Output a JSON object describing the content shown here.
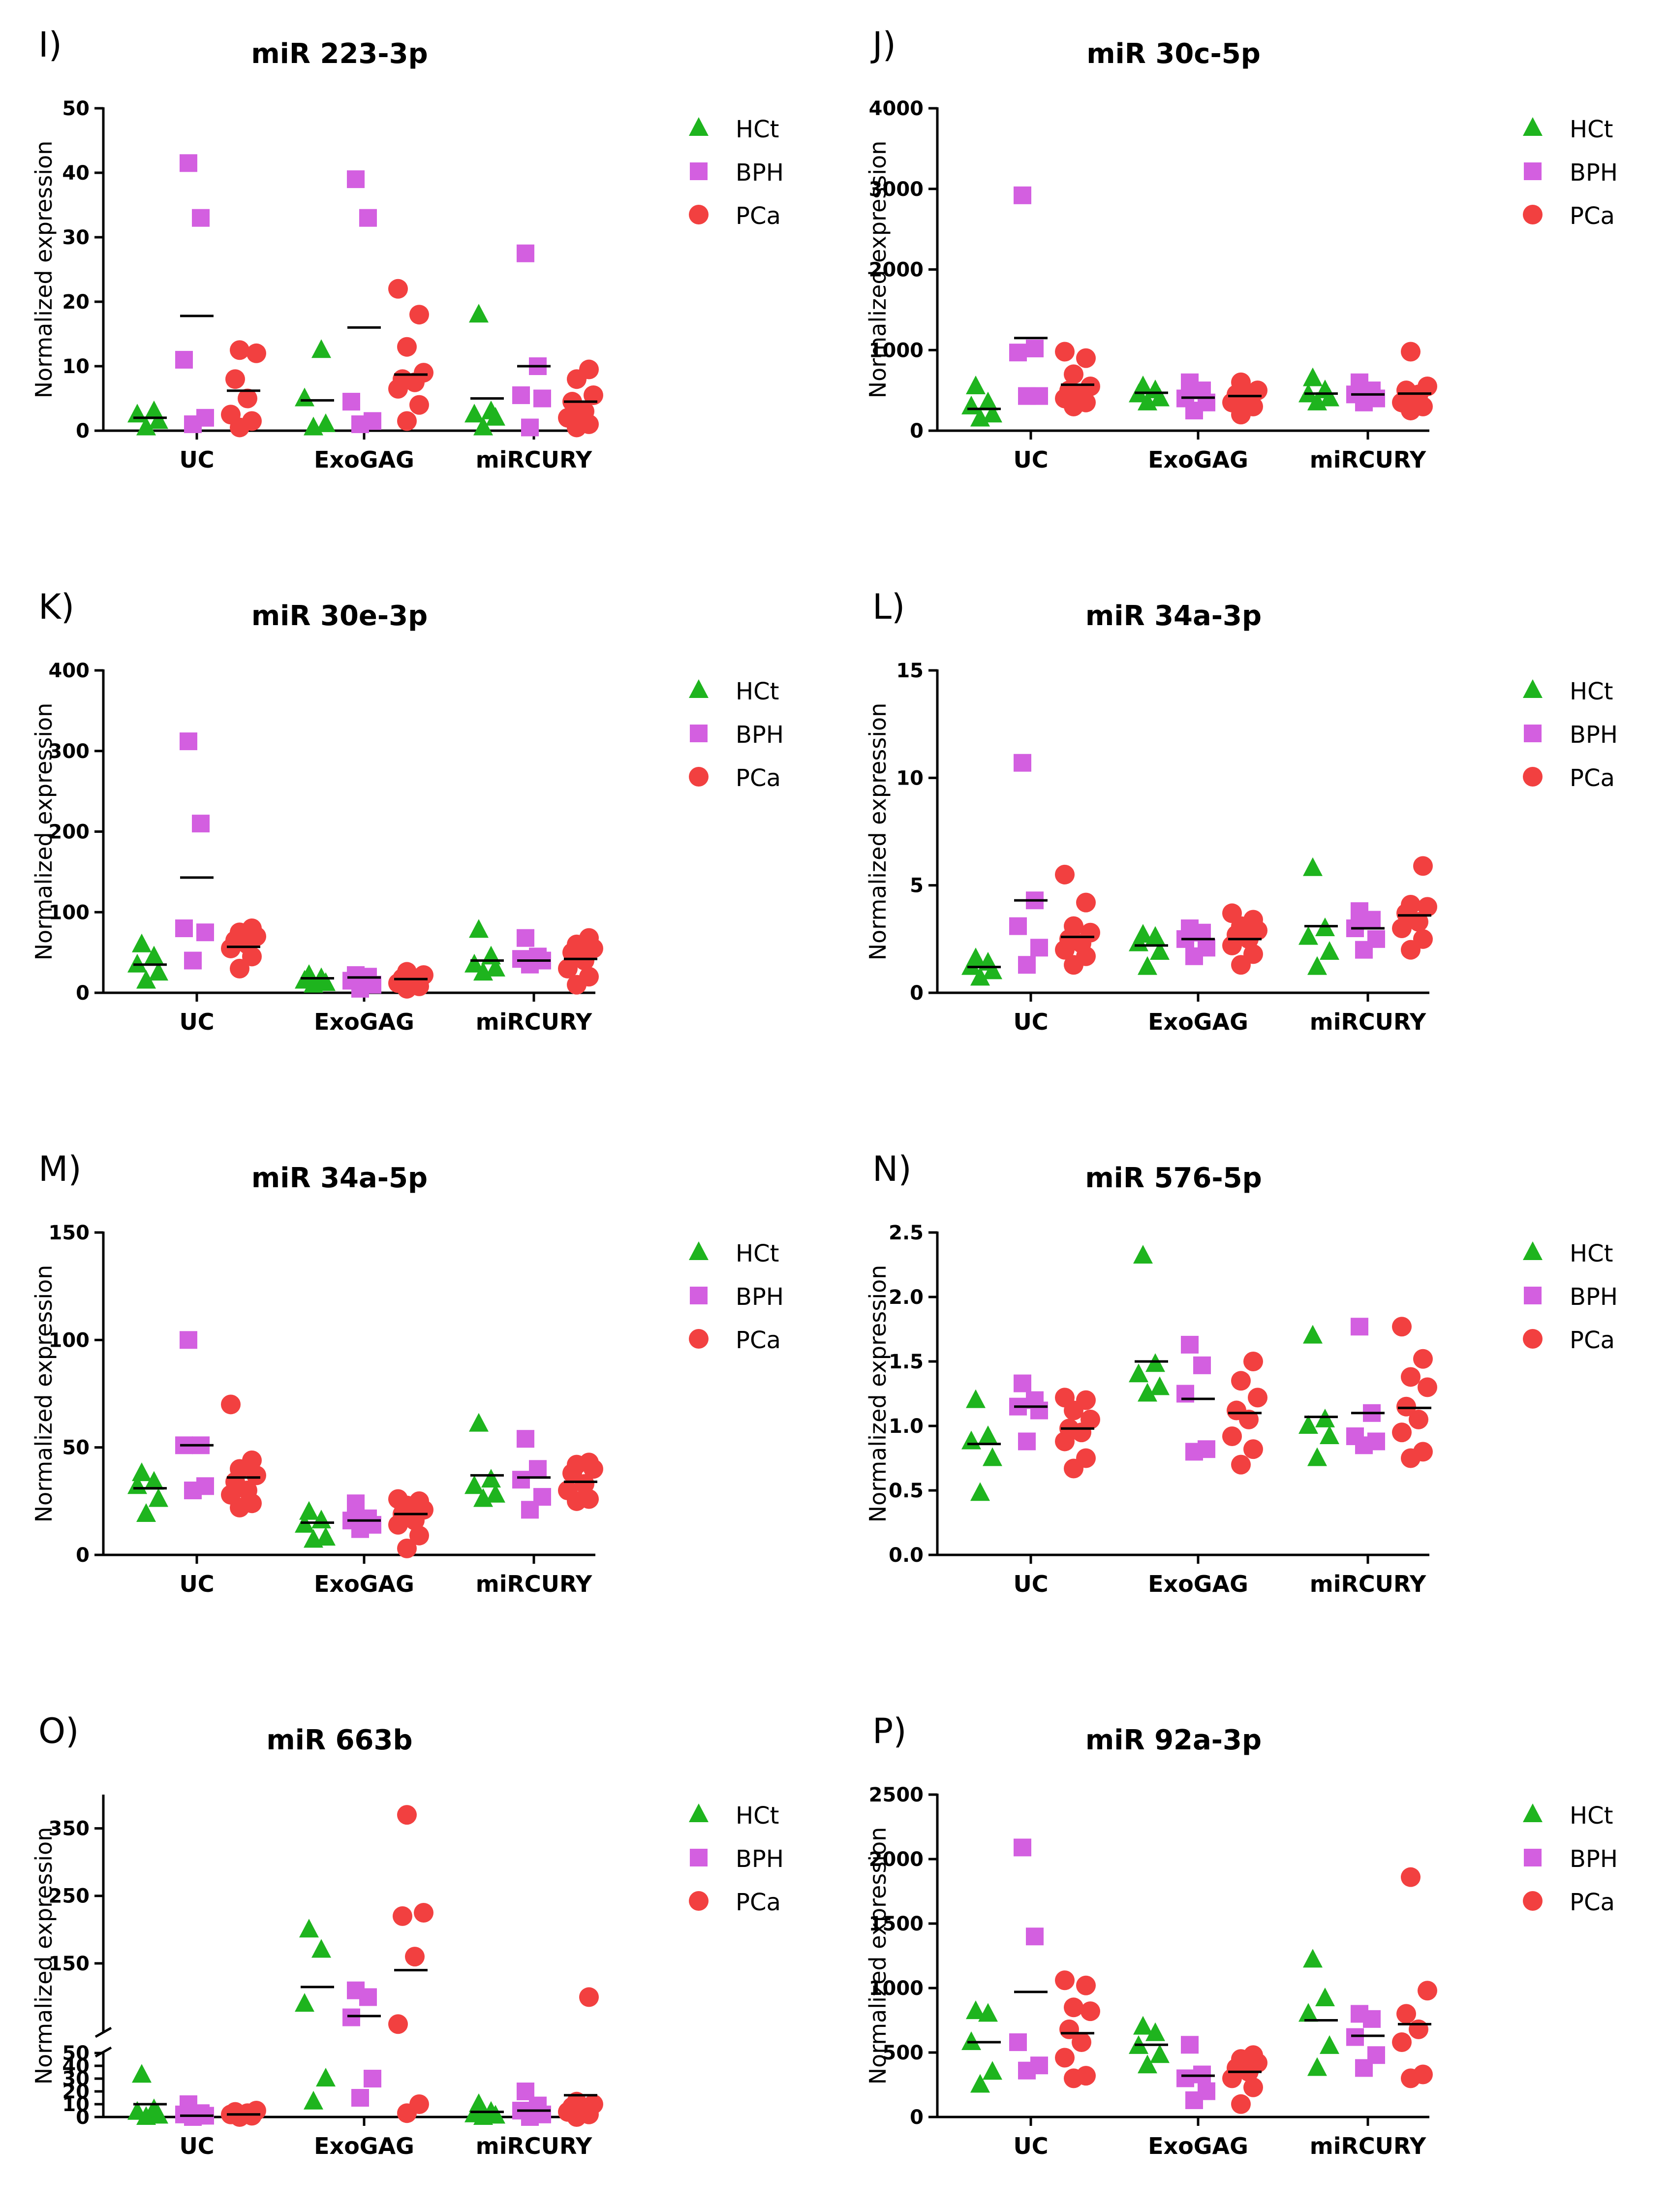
{
  "figure": {
    "categories": [
      "UC",
      "ExoGAG",
      "miRCURY"
    ],
    "y_axis_title": "Normalized expression",
    "groups": [
      {
        "name": "HCt",
        "color": "#1EB41E",
        "marker": "triangle"
      },
      {
        "name": "BPH",
        "color": "#D35FE0",
        "marker": "square"
      },
      {
        "name": "PCa",
        "color": "#F24040",
        "marker": "circle"
      }
    ]
  },
  "chart_data": [
    {
      "type": "scatter",
      "letter": "I)",
      "title": "miR 223-3p",
      "ylim": [
        0,
        50
      ],
      "ticks": [
        0,
        10,
        20,
        30,
        40,
        50
      ],
      "values": {
        "UC": {
          "HCt": [
            0.5,
            1.5,
            2.5,
            3
          ],
          "BPH": [
            1,
            2,
            11,
            33,
            41.5
          ],
          "PCa": [
            0.5,
            1.5,
            2.5,
            5,
            8,
            12,
            12.5
          ]
        },
        "ExoGAG": {
          "HCt": [
            0.5,
            1,
            5,
            12.5
          ],
          "BPH": [
            1,
            1.5,
            4.5,
            33,
            39
          ],
          "PCa": [
            1.5,
            4,
            6.5,
            7.5,
            8,
            9,
            13,
            18,
            22
          ]
        },
        "miRCURY": {
          "HCt": [
            0.5,
            2,
            2.5,
            3,
            18
          ],
          "BPH": [
            0.5,
            5,
            5.5,
            10,
            27.5
          ],
          "PCa": [
            0.5,
            1,
            2,
            3,
            4.5,
            5.5,
            8,
            9.5
          ]
        }
      },
      "medians": {
        "UC": {
          "HCt": 2,
          "BPH": 17.8,
          "PCa": 6.2
        },
        "ExoGAG": {
          "HCt": 4.7,
          "BPH": 16,
          "PCa": 8.7
        },
        "miRCURY": {
          "HCt": 5,
          "BPH": 10,
          "PCa": 4.5
        }
      }
    },
    {
      "type": "scatter",
      "letter": "J)",
      "title": "miR 30c-5p",
      "ylim": [
        0,
        4000
      ],
      "ticks": [
        0,
        1000,
        2000,
        3000,
        4000
      ],
      "values": {
        "UC": {
          "HCt": [
            150,
            200,
            300,
            350,
            550
          ],
          "BPH": [
            430,
            430,
            970,
            1020,
            2920
          ],
          "PCa": [
            300,
            350,
            400,
            450,
            500,
            550,
            700,
            900,
            980
          ]
        },
        "ExoGAG": {
          "HCt": [
            350,
            400,
            450,
            500,
            550
          ],
          "BPH": [
            250,
            350,
            400,
            500,
            600
          ],
          "PCa": [
            200,
            300,
            350,
            400,
            450,
            500,
            600
          ]
        },
        "miRCURY": {
          "HCt": [
            350,
            400,
            450,
            500,
            650
          ],
          "BPH": [
            350,
            400,
            450,
            500,
            600
          ],
          "PCa": [
            250,
            300,
            350,
            450,
            500,
            550,
            980
          ]
        }
      },
      "medians": {
        "UC": {
          "HCt": 270,
          "BPH": 1150,
          "PCa": 570
        },
        "ExoGAG": {
          "HCt": 470,
          "BPH": 410,
          "PCa": 430
        },
        "miRCURY": {
          "HCt": 460,
          "BPH": 450,
          "PCa": 460
        }
      }
    },
    {
      "type": "scatter",
      "letter": "K)",
      "title": "miR 30e-3p",
      "ylim": [
        0,
        400
      ],
      "ticks": [
        0,
        100,
        200,
        300,
        400
      ],
      "values": {
        "UC": {
          "HCt": [
            15,
            25,
            35,
            45,
            60
          ],
          "BPH": [
            40,
            75,
            80,
            210,
            312
          ],
          "PCa": [
            30,
            45,
            55,
            60,
            65,
            70,
            75,
            80
          ]
        },
        "ExoGAG": {
          "HCt": [
            10,
            12,
            15,
            18,
            22
          ],
          "BPH": [
            5,
            10,
            15,
            20,
            22
          ],
          "PCa": [
            5,
            8,
            12,
            15,
            18,
            22,
            26
          ]
        },
        "miRCURY": {
          "HCt": [
            25,
            30,
            35,
            45,
            78
          ],
          "BPH": [
            35,
            40,
            42,
            45,
            68
          ],
          "PCa": [
            10,
            20,
            30,
            40,
            50,
            55,
            60,
            68
          ]
        }
      },
      "medians": {
        "UC": {
          "HCt": 35,
          "BPH": 143,
          "PCa": 57
        },
        "ExoGAG": {
          "HCt": 18,
          "BPH": 19,
          "PCa": 17
        },
        "miRCURY": {
          "HCt": 40,
          "BPH": 40,
          "PCa": 42
        }
      }
    },
    {
      "type": "scatter",
      "letter": "L)",
      "title": "miR 34a-3p",
      "ylim": [
        0,
        15
      ],
      "ticks": [
        0,
        5,
        10,
        15
      ],
      "values": {
        "UC": {
          "HCt": [
            0.7,
            1.0,
            1.2,
            1.4,
            1.6
          ],
          "BPH": [
            1.3,
            2.1,
            3.1,
            4.3,
            10.7
          ],
          "PCa": [
            1.3,
            1.7,
            2.0,
            2.3,
            2.5,
            2.8,
            3.1,
            4.2,
            5.5
          ]
        },
        "ExoGAG": {
          "HCt": [
            1.2,
            1.9,
            2.3,
            2.6,
            2.7
          ],
          "BPH": [
            1.7,
            2.1,
            2.5,
            2.8,
            3.0
          ],
          "PCa": [
            1.3,
            1.8,
            2.2,
            2.5,
            2.7,
            2.9,
            3.1,
            3.4,
            3.7
          ]
        },
        "miRCURY": {
          "HCt": [
            1.2,
            1.9,
            2.6,
            3.0,
            5.8
          ],
          "BPH": [
            2.0,
            2.5,
            3.0,
            3.4,
            3.8
          ],
          "PCa": [
            2.0,
            2.5,
            3.0,
            3.3,
            3.7,
            4.0,
            4.1,
            5.9
          ]
        }
      },
      "medians": {
        "UC": {
          "HCt": 1.2,
          "BPH": 4.3,
          "PCa": 2.6
        },
        "ExoGAG": {
          "HCt": 2.2,
          "BPH": 2.5,
          "PCa": 2.5
        },
        "miRCURY": {
          "HCt": 3.1,
          "BPH": 3.0,
          "PCa": 3.6
        }
      }
    },
    {
      "type": "scatter",
      "letter": "M)",
      "title": "miR 34a-5p",
      "ylim": [
        0,
        150
      ],
      "ticks": [
        0,
        50,
        100,
        150
      ],
      "values": {
        "UC": {
          "HCt": [
            19,
            26,
            32,
            34,
            38
          ],
          "BPH": [
            30,
            32,
            51,
            51,
            100
          ],
          "PCa": [
            22,
            24,
            28,
            30,
            34,
            37,
            40,
            44,
            70
          ]
        },
        "ExoGAG": {
          "HCt": [
            7,
            8,
            14,
            16,
            20
          ],
          "BPH": [
            12,
            14,
            16,
            17,
            24
          ],
          "PCa": [
            3,
            9,
            14,
            16,
            19,
            21,
            23,
            25,
            26
          ]
        },
        "miRCURY": {
          "HCt": [
            26,
            28,
            32,
            35,
            61
          ],
          "BPH": [
            21,
            27,
            35,
            40,
            54
          ],
          "PCa": [
            25,
            26,
            30,
            33,
            38,
            40,
            42,
            43
          ]
        }
      },
      "medians": {
        "UC": {
          "HCt": 31,
          "BPH": 51,
          "PCa": 36
        },
        "ExoGAG": {
          "HCt": 15,
          "BPH": 16,
          "PCa": 19
        },
        "miRCURY": {
          "HCt": 37,
          "BPH": 36,
          "PCa": 34
        }
      }
    },
    {
      "type": "scatter",
      "letter": "N)",
      "title": "miR 576-5p",
      "ylim": [
        0,
        2.5
      ],
      "ticks": [
        "0.0",
        "0.5",
        "1.0",
        "1.5",
        "2.0",
        "2.5"
      ],
      "values": {
        "UC": {
          "HCt": [
            0.48,
            0.75,
            0.88,
            0.92,
            1.2
          ],
          "BPH": [
            0.88,
            1.12,
            1.15,
            1.2,
            1.33
          ],
          "PCa": [
            0.67,
            0.75,
            0.88,
            0.95,
            0.98,
            1.05,
            1.12,
            1.2,
            1.22
          ]
        },
        "ExoGAG": {
          "HCt": [
            1.25,
            1.3,
            1.4,
            1.48,
            2.32
          ],
          "BPH": [
            0.8,
            0.82,
            1.25,
            1.47,
            1.63
          ],
          "PCa": [
            0.7,
            0.82,
            0.92,
            1.05,
            1.12,
            1.22,
            1.35,
            1.5
          ]
        },
        "miRCURY": {
          "HCt": [
            0.75,
            0.92,
            1.0,
            1.05,
            1.7
          ],
          "BPH": [
            0.85,
            0.88,
            0.92,
            1.1,
            1.77
          ],
          "PCa": [
            0.75,
            0.8,
            0.95,
            1.05,
            1.15,
            1.3,
            1.38,
            1.52,
            1.77
          ]
        }
      },
      "medians": {
        "UC": {
          "HCt": 0.86,
          "BPH": 1.15,
          "PCa": 0.98
        },
        "ExoGAG": {
          "HCt": 1.5,
          "BPH": 1.21,
          "PCa": 1.1
        },
        "miRCURY": {
          "HCt": 1.07,
          "BPH": 1.1,
          "PCa": 1.14
        }
      }
    },
    {
      "type": "scatter",
      "letter": "O)",
      "title": "miR 663b",
      "broken_axis": true,
      "ticks": [
        0,
        10,
        20,
        30,
        40,
        50,
        150,
        250,
        350
      ],
      "values": {
        "UC": {
          "HCt": [
            0,
            1,
            4,
            6,
            33
          ],
          "BPH": [
            0,
            1,
            2,
            3,
            10
          ],
          "PCa": [
            0,
            1,
            2,
            3,
            4,
            5
          ]
        },
        "ExoGAG": {
          "HCt": [
            12,
            30,
            90,
            170,
            200
          ],
          "BPH": [
            15,
            30,
            70,
            100,
            110
          ],
          "PCa": [
            3,
            10,
            60,
            160,
            220,
            225,
            370
          ]
        },
        "miRCURY": {
          "HCt": [
            0,
            1,
            2,
            4,
            10
          ],
          "BPH": [
            0,
            2,
            5,
            9,
            20
          ],
          "PCa": [
            0,
            2,
            4,
            6,
            8,
            10,
            12,
            100
          ]
        }
      },
      "medians": {
        "UC": {
          "HCt": 10,
          "BPH": 1,
          "PCa": 2
        },
        "ExoGAG": {
          "HCt": 115,
          "BPH": 72,
          "PCa": 140
        },
        "miRCURY": {
          "HCt": 4,
          "BPH": 5,
          "PCa": 17
        }
      }
    },
    {
      "type": "scatter",
      "letter": "P)",
      "title": "miR 92a-3p",
      "ylim": [
        0,
        2500
      ],
      "ticks": [
        0,
        500,
        1000,
        1500,
        2000,
        2500
      ],
      "values": {
        "UC": {
          "HCt": [
            250,
            350,
            580,
            800,
            820
          ],
          "BPH": [
            360,
            400,
            580,
            1400,
            2090
          ],
          "PCa": [
            300,
            320,
            460,
            580,
            680,
            820,
            850,
            1020,
            1060
          ]
        },
        "ExoGAG": {
          "HCt": [
            400,
            480,
            550,
            650,
            700
          ],
          "BPH": [
            130,
            200,
            300,
            330,
            560
          ],
          "PCa": [
            100,
            230,
            300,
            350,
            380,
            420,
            450,
            480
          ]
        },
        "miRCURY": {
          "HCt": [
            380,
            550,
            800,
            920,
            1220
          ],
          "BPH": [
            380,
            480,
            620,
            760,
            800
          ],
          "PCa": [
            300,
            330,
            580,
            680,
            800,
            980,
            1860
          ]
        }
      },
      "medians": {
        "UC": {
          "HCt": 580,
          "BPH": 970,
          "PCa": 650
        },
        "ExoGAG": {
          "HCt": 560,
          "BPH": 320,
          "PCa": 350
        },
        "miRCURY": {
          "HCt": 750,
          "BPH": 630,
          "PCa": 720
        }
      }
    }
  ]
}
